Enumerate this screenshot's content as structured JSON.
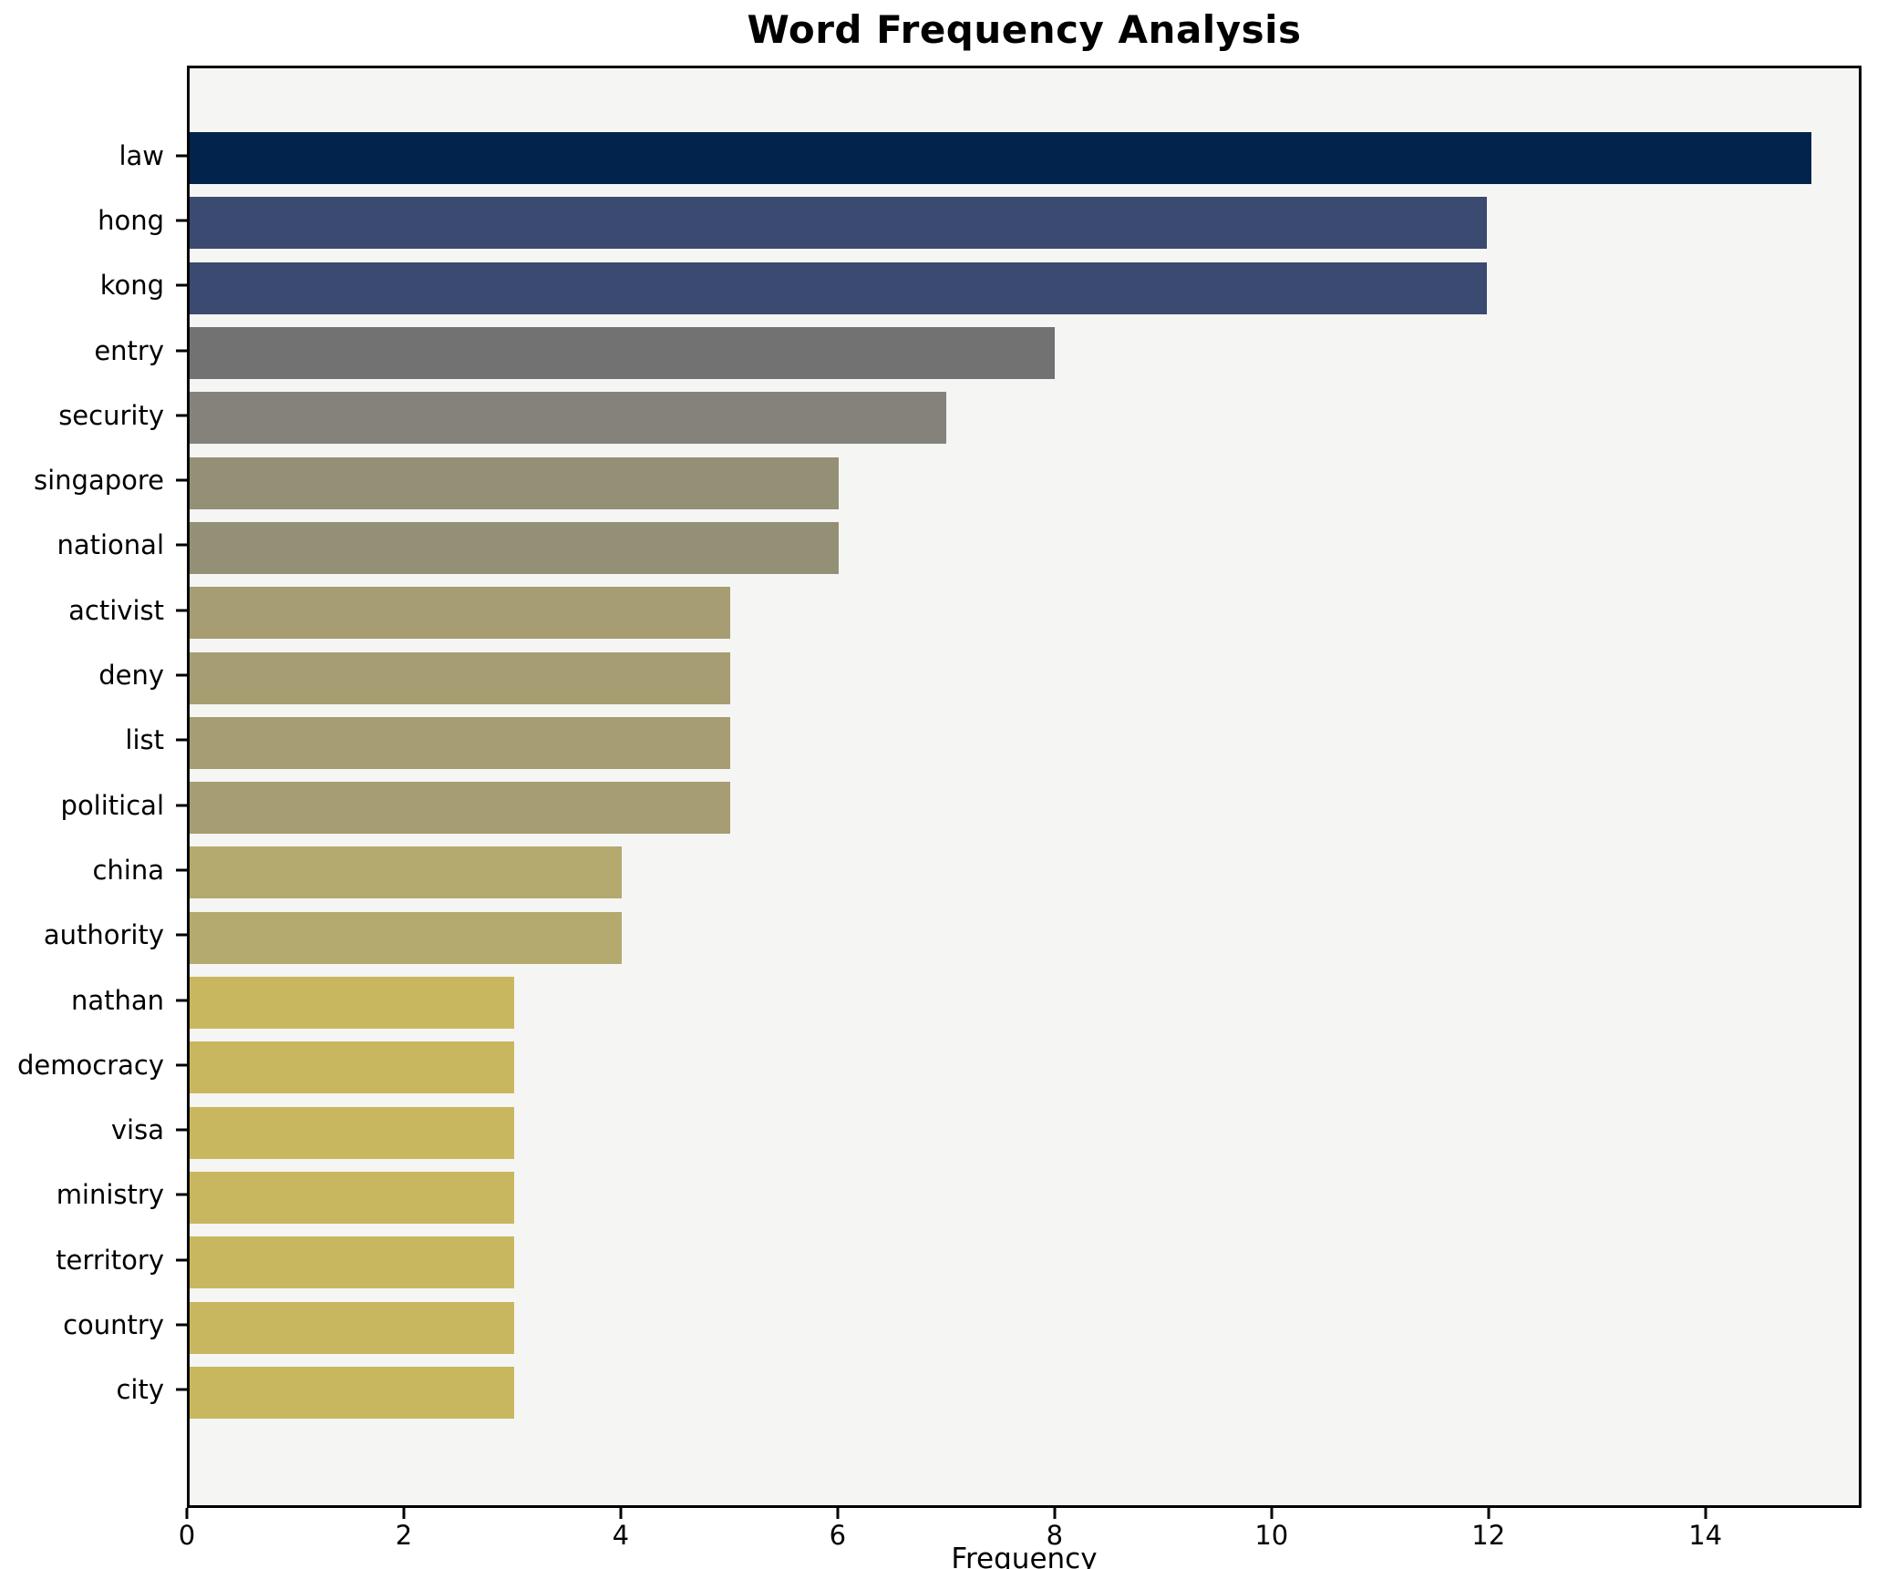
{
  "title": "Word Frequency Analysis",
  "xlabel": "Frequency",
  "chart_data": {
    "type": "bar",
    "orientation": "horizontal",
    "title": "Word Frequency Analysis",
    "xlabel": "Frequency",
    "ylabel": "",
    "categories": [
      "law",
      "hong",
      "kong",
      "entry",
      "security",
      "singapore",
      "national",
      "activist",
      "deny",
      "list",
      "political",
      "china",
      "authority",
      "nathan",
      "democracy",
      "visa",
      "ministry",
      "territory",
      "country",
      "city"
    ],
    "values": [
      15,
      12,
      12,
      8,
      7,
      6,
      6,
      5,
      5,
      5,
      5,
      4,
      4,
      3,
      3,
      3,
      3,
      3,
      3,
      3
    ],
    "bar_colors": [
      "#02234c",
      "#3a4a70",
      "#3a4a70",
      "#737272",
      "#84827a",
      "#949076",
      "#949076",
      "#a69d72",
      "#a69d72",
      "#a69d72",
      "#a69d72",
      "#b4a96e",
      "#b4a96e",
      "#c8b75f",
      "#c8b75f",
      "#c8b75f",
      "#c8b75f",
      "#c8b75f",
      "#c8b75f",
      "#c8b75f"
    ],
    "xlim": [
      0,
      15.44
    ],
    "xticks": [
      0,
      2,
      4,
      6,
      8,
      10,
      12,
      14
    ],
    "grid": false,
    "legend": null,
    "plot_background": "#f5f5f4",
    "figure_background": "#ffffff"
  }
}
